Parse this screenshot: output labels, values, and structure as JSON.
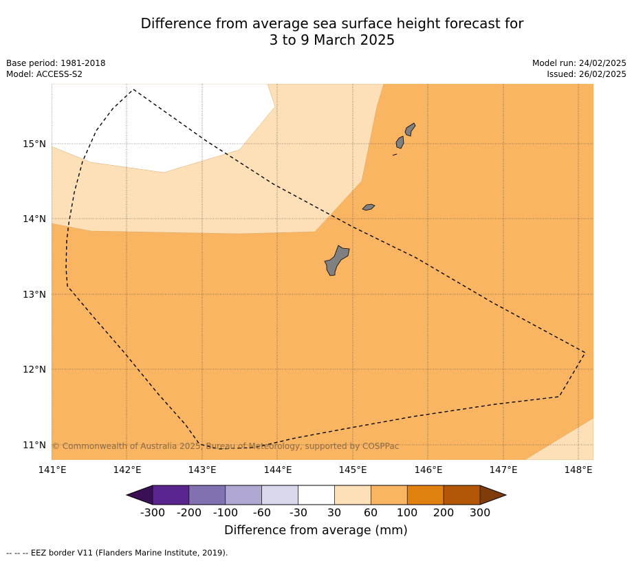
{
  "header": {
    "title_line1": "Difference from average sea surface height forecast for",
    "title_line2": "3 to 9 March 2025",
    "base_period": "Base period: 1981-2018",
    "model": "Model: ACCESS-S2",
    "model_run": "Model run: 24/02/2025",
    "issued": "Issued: 26/02/2025"
  },
  "map": {
    "lat_labels": [
      "15°N",
      "14°N",
      "13°N",
      "12°N",
      "11°N"
    ],
    "lon_labels": [
      "141°E",
      "142°E",
      "143°E",
      "144°E",
      "145°E",
      "146°E",
      "147°E",
      "148°E"
    ],
    "copyright": "© Commonwealth of Australia 2025, Bureau of Meteorology, supported by COSPPac",
    "islands": [
      "Guam",
      "Rota",
      "Tinian",
      "Saipan"
    ]
  },
  "colorbar": {
    "tick_labels": [
      "-300",
      "-200",
      "-100",
      "-60",
      "-30",
      "30",
      "60",
      "100",
      "200",
      "300"
    ],
    "colors": [
      "#3b0f53",
      "#5a2590",
      "#8171b1",
      "#b0a8d2",
      "#d9d9ec",
      "#ffffff",
      "#fde0b7",
      "#f9b562",
      "#e0800f",
      "#b25707",
      "#7f3b08"
    ],
    "label": "Difference from average (mm)"
  },
  "footer": {
    "eez_note": "--  --  -- EEZ border V11 (Flanders Marine Institute, 2019)."
  }
}
